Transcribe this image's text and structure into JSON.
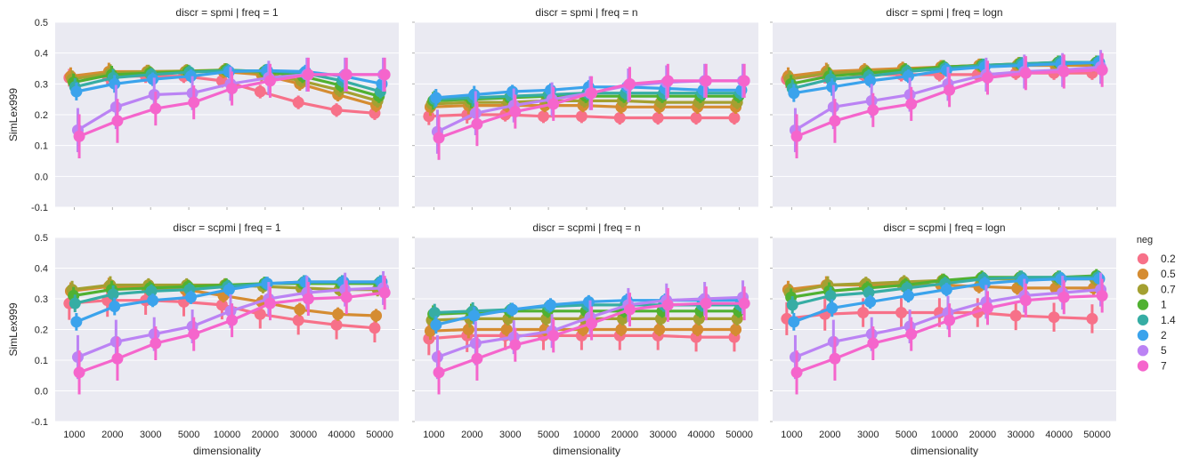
{
  "figure": {
    "legend": {
      "title": "neg",
      "labels": [
        "0.2",
        "0.5",
        "0.7",
        "1",
        "1.4",
        "2",
        "5",
        "7"
      ],
      "colors": [
        "#f77189",
        "#d58c32",
        "#a4a031",
        "#50b131",
        "#36ada4",
        "#3ba3ec",
        "#bb83f4",
        "#f565cc"
      ]
    },
    "ylabel": "SimLex999",
    "xlabel": "dimensionality",
    "yticks": [
      "-0.1",
      "0.0",
      "0.1",
      "0.2",
      "0.3",
      "0.4",
      "0.5"
    ],
    "xticks": [
      "1000",
      "2000",
      "3000",
      "5000",
      "10000",
      "20000",
      "30000",
      "40000",
      "50000"
    ]
  },
  "chart_data": [
    {
      "type": "line",
      "title": "discr = spmi | freq = 1",
      "xlabel": "",
      "ylabel": "SimLex999",
      "categories": [
        "1000",
        "2000",
        "3000",
        "5000",
        "10000",
        "20000",
        "30000",
        "40000",
        "50000"
      ],
      "ylim": [
        -0.1,
        0.5
      ],
      "series": [
        {
          "name": "0.2",
          "values": [
            0.32,
            0.325,
            0.325,
            0.325,
            0.31,
            0.275,
            0.24,
            0.215,
            0.205
          ]
        },
        {
          "name": "0.5",
          "values": [
            0.325,
            0.34,
            0.34,
            0.34,
            0.34,
            0.33,
            0.3,
            0.265,
            0.23
          ]
        },
        {
          "name": "0.7",
          "values": [
            0.315,
            0.335,
            0.34,
            0.342,
            0.345,
            0.335,
            0.31,
            0.28,
            0.245
          ]
        },
        {
          "name": "1",
          "values": [
            0.305,
            0.33,
            0.335,
            0.34,
            0.345,
            0.34,
            0.325,
            0.295,
            0.26
          ]
        },
        {
          "name": "1.4",
          "values": [
            0.29,
            0.32,
            0.33,
            0.338,
            0.343,
            0.342,
            0.335,
            0.31,
            0.275
          ]
        },
        {
          "name": "2",
          "values": [
            0.275,
            0.3,
            0.315,
            0.325,
            0.34,
            0.343,
            0.34,
            0.325,
            0.3
          ]
        },
        {
          "name": "5",
          "values": [
            0.15,
            0.225,
            0.265,
            0.27,
            0.3,
            0.32,
            0.33,
            0.33,
            0.33
          ]
        },
        {
          "name": "7",
          "values": [
            0.13,
            0.18,
            0.22,
            0.24,
            0.285,
            0.31,
            0.33,
            0.33,
            0.33
          ]
        }
      ]
    },
    {
      "type": "line",
      "title": "discr = spmi | freq = n",
      "xlabel": "",
      "ylabel": "",
      "categories": [
        "1000",
        "2000",
        "3000",
        "5000",
        "10000",
        "20000",
        "30000",
        "40000",
        "50000"
      ],
      "ylim": [
        -0.1,
        0.5
      ],
      "series": [
        {
          "name": "0.2",
          "values": [
            0.195,
            0.2,
            0.2,
            0.195,
            0.195,
            0.19,
            0.19,
            0.19,
            0.19
          ]
        },
        {
          "name": "0.5",
          "values": [
            0.225,
            0.23,
            0.23,
            0.23,
            0.23,
            0.225,
            0.225,
            0.225,
            0.225
          ]
        },
        {
          "name": "0.7",
          "values": [
            0.235,
            0.24,
            0.24,
            0.245,
            0.245,
            0.245,
            0.24,
            0.24,
            0.24
          ]
        },
        {
          "name": "1",
          "values": [
            0.245,
            0.25,
            0.255,
            0.26,
            0.26,
            0.26,
            0.26,
            0.26,
            0.26
          ]
        },
        {
          "name": "1.4",
          "values": [
            0.25,
            0.255,
            0.26,
            0.265,
            0.27,
            0.27,
            0.27,
            0.27,
            0.27
          ]
        },
        {
          "name": "2",
          "values": [
            0.255,
            0.265,
            0.275,
            0.28,
            0.29,
            0.29,
            0.285,
            0.28,
            0.28
          ]
        },
        {
          "name": "5",
          "values": [
            0.145,
            0.205,
            0.23,
            0.25,
            0.27,
            0.295,
            0.305,
            0.31,
            0.31
          ]
        },
        {
          "name": "7",
          "values": [
            0.125,
            0.17,
            0.21,
            0.235,
            0.27,
            0.3,
            0.31,
            0.31,
            0.31
          ]
        }
      ]
    },
    {
      "type": "line",
      "title": "discr = spmi | freq = logn",
      "xlabel": "",
      "ylabel": "",
      "categories": [
        "1000",
        "2000",
        "3000",
        "5000",
        "10000",
        "20000",
        "30000",
        "40000",
        "50000"
      ],
      "ylim": [
        -0.1,
        0.5
      ],
      "series": [
        {
          "name": "0.2",
          "values": [
            0.315,
            0.33,
            0.33,
            0.33,
            0.33,
            0.33,
            0.335,
            0.335,
            0.335
          ]
        },
        {
          "name": "0.5",
          "values": [
            0.325,
            0.34,
            0.345,
            0.35,
            0.355,
            0.36,
            0.36,
            0.36,
            0.36
          ]
        },
        {
          "name": "0.7",
          "values": [
            0.315,
            0.335,
            0.34,
            0.345,
            0.355,
            0.36,
            0.365,
            0.365,
            0.365
          ]
        },
        {
          "name": "1",
          "values": [
            0.3,
            0.325,
            0.335,
            0.345,
            0.355,
            0.36,
            0.365,
            0.37,
            0.37
          ]
        },
        {
          "name": "1.4",
          "values": [
            0.285,
            0.315,
            0.325,
            0.34,
            0.35,
            0.36,
            0.365,
            0.37,
            0.37
          ]
        },
        {
          "name": "2",
          "values": [
            0.27,
            0.29,
            0.31,
            0.325,
            0.345,
            0.355,
            0.36,
            0.365,
            0.37
          ]
        },
        {
          "name": "5",
          "values": [
            0.15,
            0.225,
            0.245,
            0.265,
            0.3,
            0.33,
            0.34,
            0.345,
            0.355
          ]
        },
        {
          "name": "7",
          "values": [
            0.13,
            0.18,
            0.215,
            0.235,
            0.28,
            0.32,
            0.335,
            0.34,
            0.345
          ]
        }
      ]
    },
    {
      "type": "line",
      "title": "discr = scpmi | freq = 1",
      "xlabel": "dimensionality",
      "ylabel": "SimLex999",
      "categories": [
        "1000",
        "2000",
        "3000",
        "5000",
        "10000",
        "20000",
        "30000",
        "40000",
        "50000"
      ],
      "ylim": [
        -0.1,
        0.5
      ],
      "series": [
        {
          "name": "0.2",
          "values": [
            0.285,
            0.295,
            0.295,
            0.29,
            0.28,
            0.25,
            0.23,
            0.215,
            0.205
          ]
        },
        {
          "name": "0.5",
          "values": [
            0.325,
            0.34,
            0.335,
            0.33,
            0.31,
            0.29,
            0.265,
            0.25,
            0.245
          ]
        },
        {
          "name": "0.7",
          "values": [
            0.33,
            0.345,
            0.345,
            0.345,
            0.345,
            0.34,
            0.335,
            0.33,
            0.33
          ]
        },
        {
          "name": "1",
          "values": [
            0.31,
            0.33,
            0.335,
            0.34,
            0.345,
            0.35,
            0.35,
            0.35,
            0.35
          ]
        },
        {
          "name": "1.4",
          "values": [
            0.285,
            0.315,
            0.325,
            0.33,
            0.34,
            0.35,
            0.355,
            0.355,
            0.355
          ]
        },
        {
          "name": "2",
          "values": [
            0.225,
            0.275,
            0.295,
            0.305,
            0.33,
            0.35,
            0.355,
            0.355,
            0.355
          ]
        },
        {
          "name": "5",
          "values": [
            0.11,
            0.16,
            0.185,
            0.21,
            0.26,
            0.3,
            0.32,
            0.33,
            0.335
          ]
        },
        {
          "name": "7",
          "values": [
            0.06,
            0.105,
            0.155,
            0.185,
            0.23,
            0.285,
            0.3,
            0.305,
            0.32
          ]
        }
      ]
    },
    {
      "type": "line",
      "title": "discr = scpmi | freq = n",
      "xlabel": "dimensionality",
      "ylabel": "",
      "categories": [
        "1000",
        "2000",
        "3000",
        "5000",
        "10000",
        "20000",
        "30000",
        "40000",
        "50000"
      ],
      "ylim": [
        -0.1,
        0.5
      ],
      "series": [
        {
          "name": "0.2",
          "values": [
            0.17,
            0.18,
            0.18,
            0.18,
            0.18,
            0.18,
            0.18,
            0.175,
            0.175
          ]
        },
        {
          "name": "0.5",
          "values": [
            0.195,
            0.2,
            0.2,
            0.2,
            0.2,
            0.2,
            0.2,
            0.2,
            0.2
          ]
        },
        {
          "name": "0.7",
          "values": [
            0.23,
            0.235,
            0.235,
            0.235,
            0.235,
            0.235,
            0.235,
            0.235,
            0.235
          ]
        },
        {
          "name": "1",
          "values": [
            0.25,
            0.255,
            0.26,
            0.26,
            0.26,
            0.26,
            0.26,
            0.26,
            0.26
          ]
        },
        {
          "name": "1.4",
          "values": [
            0.255,
            0.26,
            0.265,
            0.275,
            0.28,
            0.28,
            0.28,
            0.28,
            0.28
          ]
        },
        {
          "name": "2",
          "values": [
            0.215,
            0.245,
            0.265,
            0.28,
            0.29,
            0.295,
            0.295,
            0.295,
            0.295
          ]
        },
        {
          "name": "5",
          "values": [
            0.11,
            0.155,
            0.175,
            0.195,
            0.24,
            0.28,
            0.295,
            0.3,
            0.305
          ]
        },
        {
          "name": "7",
          "values": [
            0.06,
            0.105,
            0.15,
            0.18,
            0.22,
            0.265,
            0.28,
            0.285,
            0.285
          ]
        }
      ]
    },
    {
      "type": "line",
      "title": "discr = scpmi | freq = logn",
      "xlabel": "dimensionality",
      "ylabel": "",
      "categories": [
        "1000",
        "2000",
        "3000",
        "5000",
        "10000",
        "20000",
        "30000",
        "40000",
        "50000"
      ],
      "ylim": [
        -0.1,
        0.5
      ],
      "series": [
        {
          "name": "0.2",
          "values": [
            0.235,
            0.25,
            0.255,
            0.255,
            0.255,
            0.255,
            0.245,
            0.24,
            0.235
          ]
        },
        {
          "name": "0.5",
          "values": [
            0.33,
            0.345,
            0.345,
            0.345,
            0.345,
            0.34,
            0.335,
            0.335,
            0.335
          ]
        },
        {
          "name": "0.7",
          "values": [
            0.32,
            0.345,
            0.35,
            0.355,
            0.36,
            0.365,
            0.365,
            0.365,
            0.365
          ]
        },
        {
          "name": "1",
          "values": [
            0.305,
            0.325,
            0.335,
            0.345,
            0.36,
            0.37,
            0.37,
            0.37,
            0.375
          ]
        },
        {
          "name": "1.4",
          "values": [
            0.28,
            0.31,
            0.32,
            0.335,
            0.35,
            0.365,
            0.37,
            0.37,
            0.37
          ]
        },
        {
          "name": "2",
          "values": [
            0.225,
            0.27,
            0.29,
            0.31,
            0.33,
            0.35,
            0.36,
            0.365,
            0.365
          ]
        },
        {
          "name": "5",
          "values": [
            0.11,
            0.16,
            0.185,
            0.21,
            0.255,
            0.29,
            0.31,
            0.32,
            0.33
          ]
        },
        {
          "name": "7",
          "values": [
            0.06,
            0.105,
            0.155,
            0.185,
            0.23,
            0.27,
            0.295,
            0.305,
            0.31
          ]
        }
      ]
    }
  ]
}
